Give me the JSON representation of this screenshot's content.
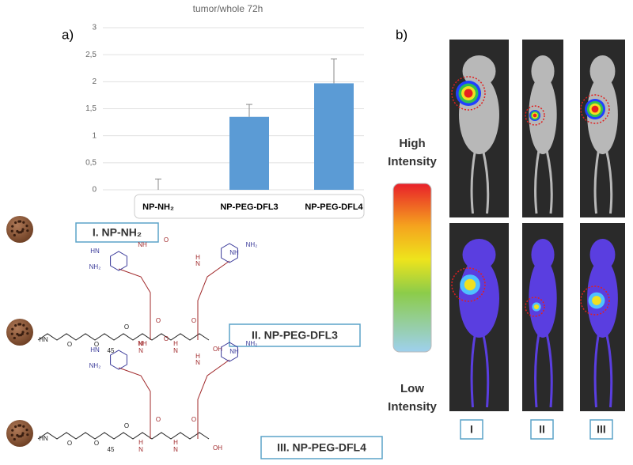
{
  "chart_data": {
    "type": "bar",
    "title": "tumor/whole 72h",
    "categories": [
      "NP-NH₂",
      "NP-PEG-DFL3",
      "NP-PEG-DFL4"
    ],
    "values": [
      0,
      1.35,
      1.97
    ],
    "errors": [
      0.2,
      0.23,
      0.45
    ],
    "color": "#5b9bd5",
    "ylim": [
      0,
      3
    ],
    "yticks": [
      0,
      {
        "value": 0.5,
        "label": "0,5"
      },
      1,
      {
        "value": 1.5,
        "label": "1,5"
      },
      2,
      {
        "value": 2.5,
        "label": "2,5"
      },
      3
    ],
    "grid": true
  },
  "panel_labels": [
    "a)",
    "b)"
  ],
  "compounds": [
    "I. NP-NH₂",
    "II. NP-PEG-DFL3",
    "III. NP-PEG-DFL4"
  ],
  "structures": [
    {
      "labels": [
        "HN",
        "O",
        "O",
        "45",
        "O",
        "N",
        "H",
        "O",
        "N",
        "H",
        "O",
        "OH",
        "HN",
        "NH₂",
        "NH",
        "N",
        "H",
        "NH₂",
        "NH",
        "O"
      ]
    },
    {
      "labels": [
        "HN",
        "O",
        "O",
        "45",
        "O",
        "N",
        "H",
        "O",
        "N",
        "H",
        "O",
        "OH",
        "HN",
        "NH₂",
        "NH",
        "N",
        "H",
        "NH₂",
        "NH",
        "O"
      ]
    }
  ],
  "scale": {
    "high": [
      "High",
      "Intensity"
    ],
    "low": [
      "Low",
      "Intensity"
    ]
  },
  "groups": [
    "I",
    "II",
    "III"
  ]
}
